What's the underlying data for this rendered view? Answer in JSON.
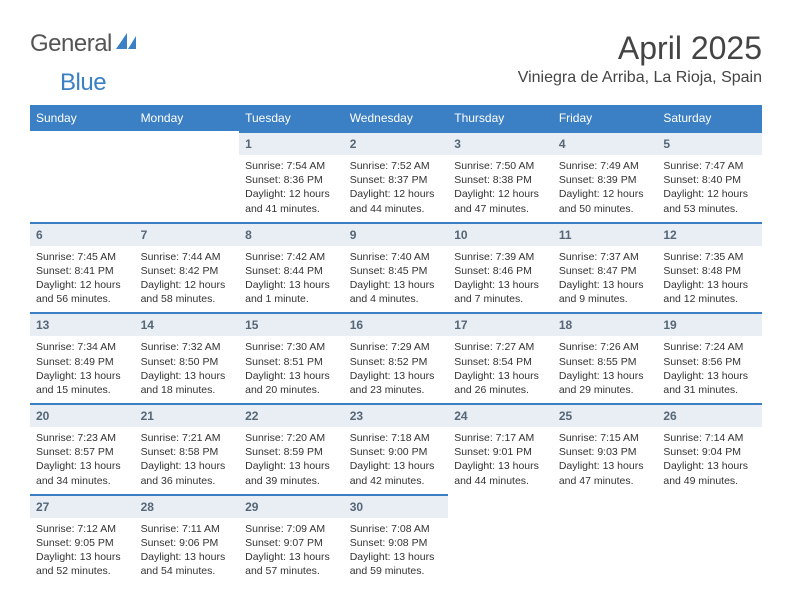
{
  "logo": {
    "part1": "General",
    "part2": "Blue"
  },
  "title": "April 2025",
  "location": "Viniegra de Arriba, La Rioja, Spain",
  "colors": {
    "header_bg": "#3b7fc4",
    "header_text": "#ffffff",
    "daynum_bg": "#e8eef4",
    "daynum_border": "#3b7fc4",
    "body_text": "#333333",
    "logo_gray": "#555555",
    "logo_blue": "#3b7fc4"
  },
  "day_headers": [
    "Sunday",
    "Monday",
    "Tuesday",
    "Wednesday",
    "Thursday",
    "Friday",
    "Saturday"
  ],
  "weeks": [
    [
      null,
      null,
      {
        "n": "1",
        "sr": "7:54 AM",
        "ss": "8:36 PM",
        "dl": "12 hours and 41 minutes."
      },
      {
        "n": "2",
        "sr": "7:52 AM",
        "ss": "8:37 PM",
        "dl": "12 hours and 44 minutes."
      },
      {
        "n": "3",
        "sr": "7:50 AM",
        "ss": "8:38 PM",
        "dl": "12 hours and 47 minutes."
      },
      {
        "n": "4",
        "sr": "7:49 AM",
        "ss": "8:39 PM",
        "dl": "12 hours and 50 minutes."
      },
      {
        "n": "5",
        "sr": "7:47 AM",
        "ss": "8:40 PM",
        "dl": "12 hours and 53 minutes."
      }
    ],
    [
      {
        "n": "6",
        "sr": "7:45 AM",
        "ss": "8:41 PM",
        "dl": "12 hours and 56 minutes."
      },
      {
        "n": "7",
        "sr": "7:44 AM",
        "ss": "8:42 PM",
        "dl": "12 hours and 58 minutes."
      },
      {
        "n": "8",
        "sr": "7:42 AM",
        "ss": "8:44 PM",
        "dl": "13 hours and 1 minute."
      },
      {
        "n": "9",
        "sr": "7:40 AM",
        "ss": "8:45 PM",
        "dl": "13 hours and 4 minutes."
      },
      {
        "n": "10",
        "sr": "7:39 AM",
        "ss": "8:46 PM",
        "dl": "13 hours and 7 minutes."
      },
      {
        "n": "11",
        "sr": "7:37 AM",
        "ss": "8:47 PM",
        "dl": "13 hours and 9 minutes."
      },
      {
        "n": "12",
        "sr": "7:35 AM",
        "ss": "8:48 PM",
        "dl": "13 hours and 12 minutes."
      }
    ],
    [
      {
        "n": "13",
        "sr": "7:34 AM",
        "ss": "8:49 PM",
        "dl": "13 hours and 15 minutes."
      },
      {
        "n": "14",
        "sr": "7:32 AM",
        "ss": "8:50 PM",
        "dl": "13 hours and 18 minutes."
      },
      {
        "n": "15",
        "sr": "7:30 AM",
        "ss": "8:51 PM",
        "dl": "13 hours and 20 minutes."
      },
      {
        "n": "16",
        "sr": "7:29 AM",
        "ss": "8:52 PM",
        "dl": "13 hours and 23 minutes."
      },
      {
        "n": "17",
        "sr": "7:27 AM",
        "ss": "8:54 PM",
        "dl": "13 hours and 26 minutes."
      },
      {
        "n": "18",
        "sr": "7:26 AM",
        "ss": "8:55 PM",
        "dl": "13 hours and 29 minutes."
      },
      {
        "n": "19",
        "sr": "7:24 AM",
        "ss": "8:56 PM",
        "dl": "13 hours and 31 minutes."
      }
    ],
    [
      {
        "n": "20",
        "sr": "7:23 AM",
        "ss": "8:57 PM",
        "dl": "13 hours and 34 minutes."
      },
      {
        "n": "21",
        "sr": "7:21 AM",
        "ss": "8:58 PM",
        "dl": "13 hours and 36 minutes."
      },
      {
        "n": "22",
        "sr": "7:20 AM",
        "ss": "8:59 PM",
        "dl": "13 hours and 39 minutes."
      },
      {
        "n": "23",
        "sr": "7:18 AM",
        "ss": "9:00 PM",
        "dl": "13 hours and 42 minutes."
      },
      {
        "n": "24",
        "sr": "7:17 AM",
        "ss": "9:01 PM",
        "dl": "13 hours and 44 minutes."
      },
      {
        "n": "25",
        "sr": "7:15 AM",
        "ss": "9:03 PM",
        "dl": "13 hours and 47 minutes."
      },
      {
        "n": "26",
        "sr": "7:14 AM",
        "ss": "9:04 PM",
        "dl": "13 hours and 49 minutes."
      }
    ],
    [
      {
        "n": "27",
        "sr": "7:12 AM",
        "ss": "9:05 PM",
        "dl": "13 hours and 52 minutes."
      },
      {
        "n": "28",
        "sr": "7:11 AM",
        "ss": "9:06 PM",
        "dl": "13 hours and 54 minutes."
      },
      {
        "n": "29",
        "sr": "7:09 AM",
        "ss": "9:07 PM",
        "dl": "13 hours and 57 minutes."
      },
      {
        "n": "30",
        "sr": "7:08 AM",
        "ss": "9:08 PM",
        "dl": "13 hours and 59 minutes."
      },
      null,
      null,
      null
    ]
  ],
  "labels": {
    "sunrise": "Sunrise:",
    "sunset": "Sunset:",
    "daylight": "Daylight:"
  }
}
